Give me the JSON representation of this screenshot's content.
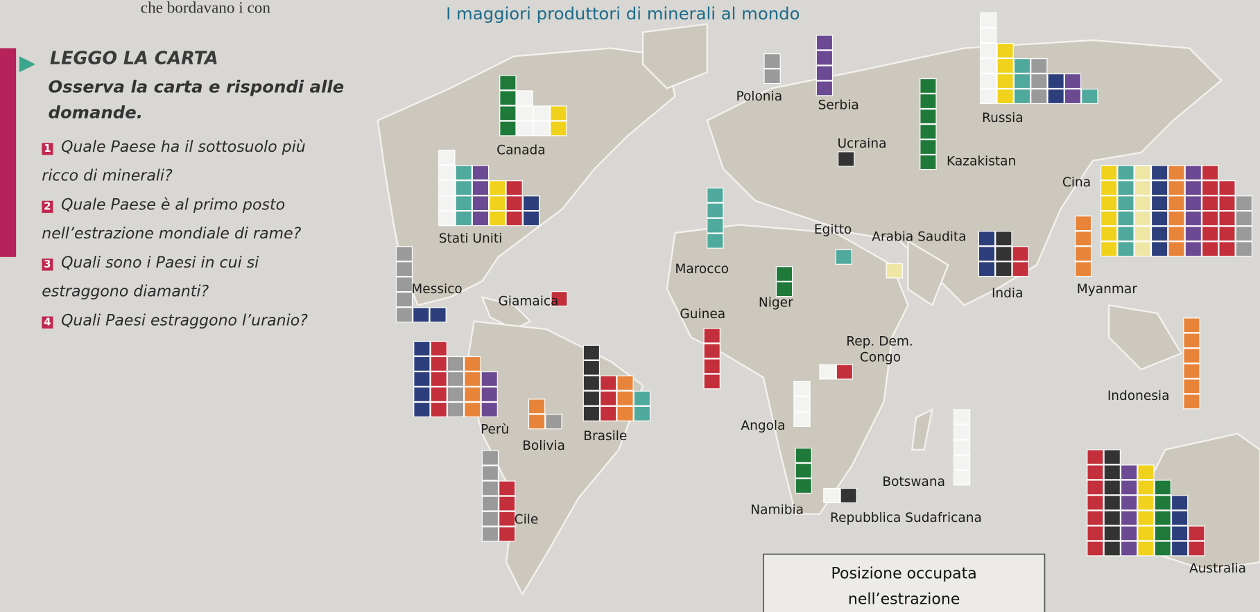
{
  "header": {
    "fragment": "che bordavano i con",
    "title": "I maggiori produttori di minerali al mondo"
  },
  "sidebar": {
    "heading": "LEGGO LA CARTA",
    "instruction": "Osserva la carta e rispondi alle domande.",
    "questions": [
      {
        "number": "1",
        "text": "Quale Paese ha il sottosuolo più ricco di minerali?"
      },
      {
        "number": "2",
        "text": "Quale Paese è al primo posto nell’estrazione mondiale di rame?"
      },
      {
        "number": "3",
        "text": "Quali sono i Paesi in cui si estraggono diamanti?"
      },
      {
        "number": "4",
        "text": "Quali Paesi estraggono l’uranio?"
      }
    ]
  },
  "map": {
    "countries": [
      "Canada",
      "Stati Uniti",
      "Messico",
      "Giamaica",
      "Perù",
      "Bolivia",
      "Brasile",
      "Cile",
      "Polonia",
      "Serbia",
      "Russia",
      "Ucraina",
      "Kazakistan",
      "Cina",
      "Egitto",
      "Arabia Saudita",
      "Marocco",
      "Niger",
      "Guinea",
      "India",
      "Myanmar",
      "Indonesia",
      "Rep. Dem. Congo",
      "Angola",
      "Botswana",
      "Namibia",
      "Repubblica Sudafricana",
      "Australia"
    ]
  },
  "legend": {
    "title": "Posizione occupata",
    "subtitle": "nell’estrazione"
  }
}
